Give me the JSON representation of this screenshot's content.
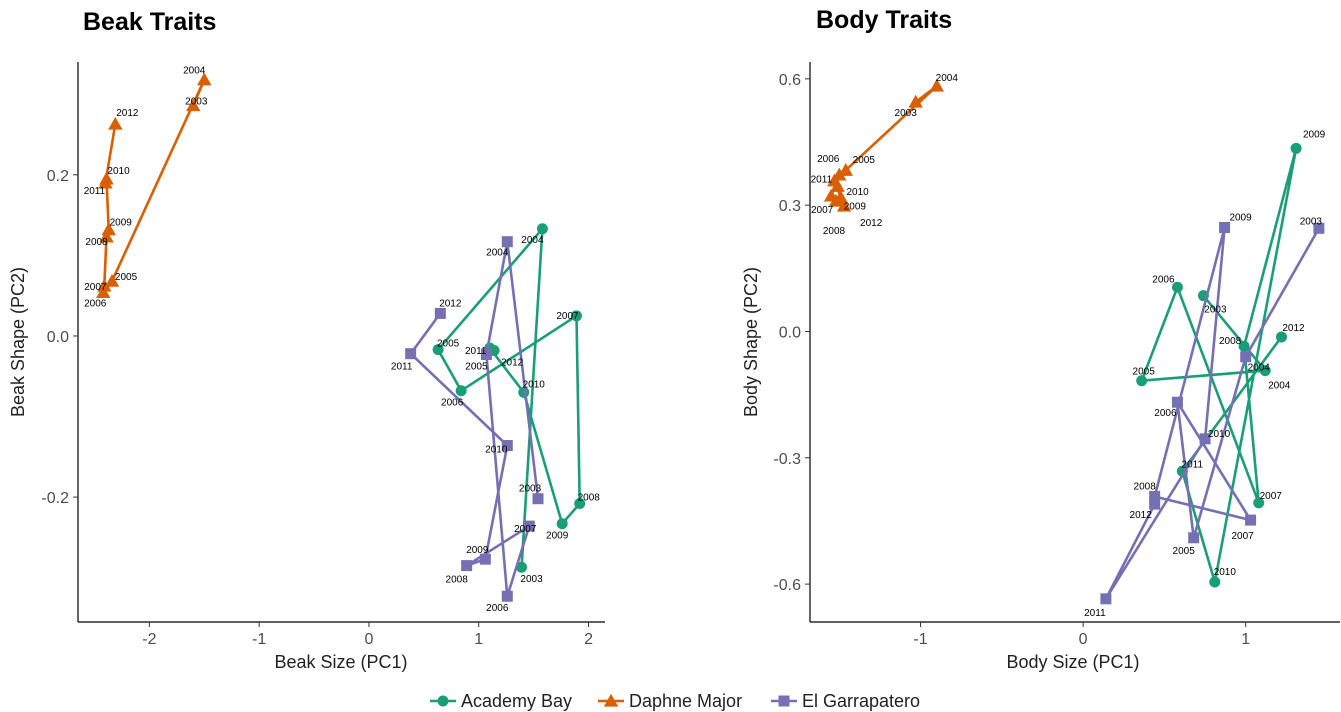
{
  "legend": [
    {
      "name": "Academy Bay",
      "color": "#1b9e77",
      "marker": "circle"
    },
    {
      "name": "Daphne Major",
      "color": "#d95f02",
      "marker": "triangle"
    },
    {
      "name": "El Garrapatero",
      "color": "#7570b3",
      "marker": "square"
    }
  ],
  "chart_data": [
    {
      "type": "line",
      "title": "Beak Traits",
      "xlabel": "Beak Size (PC1)",
      "ylabel": "Beak Shape (PC2)",
      "xlim": [
        -2.65,
        2.15
      ],
      "ylim": [
        -0.355,
        0.34
      ],
      "xticks": [
        -2,
        -1,
        0,
        1,
        2
      ],
      "xtick_labels": [
        "-2",
        "-1",
        "0",
        "1",
        "2"
      ],
      "yticks": [
        -0.2,
        0.0,
        0.2
      ],
      "ytick_labels": [
        "-0.2",
        "0.0",
        "0.2"
      ],
      "series": [
        {
          "name": "Academy Bay",
          "color": "#1b9e77",
          "marker": "circle",
          "points": [
            {
              "year": "2003",
              "x": 1.39,
              "y": -0.287
            },
            {
              "year": "2004",
              "x": 1.58,
              "y": 0.133
            },
            {
              "year": "2005",
              "x": 0.63,
              "y": -0.017
            },
            {
              "year": "2006",
              "x": 0.84,
              "y": -0.068
            },
            {
              "year": "2007",
              "x": 1.89,
              "y": 0.025
            },
            {
              "year": "2008",
              "x": 1.92,
              "y": -0.208
            },
            {
              "year": "2009",
              "x": 1.76,
              "y": -0.233
            },
            {
              "year": "2010",
              "x": 1.41,
              "y": -0.07
            },
            {
              "year": "2011",
              "x": 1.1,
              "y": -0.015
            },
            {
              "year": "2012",
              "x": 1.14,
              "y": -0.018
            }
          ]
        },
        {
          "name": "Daphne Major",
          "color": "#d95f02",
          "marker": "triangle",
          "points": [
            {
              "year": "2003",
              "x": -1.6,
              "y": 0.286
            },
            {
              "year": "2004",
              "x": -1.5,
              "y": 0.318
            },
            {
              "year": "2005",
              "x": -2.34,
              "y": 0.068
            },
            {
              "year": "2006",
              "x": -2.42,
              "y": 0.054
            },
            {
              "year": "2007",
              "x": -2.41,
              "y": 0.062
            },
            {
              "year": "2008",
              "x": -2.39,
              "y": 0.123
            },
            {
              "year": "2009",
              "x": -2.37,
              "y": 0.132
            },
            {
              "year": "2010",
              "x": -2.39,
              "y": 0.195
            },
            {
              "year": "2011",
              "x": -2.4,
              "y": 0.19
            },
            {
              "year": "2012",
              "x": -2.31,
              "y": 0.263
            }
          ]
        },
        {
          "name": "El Garrapatero",
          "color": "#7570b3",
          "marker": "square",
          "points": [
            {
              "year": "2003",
              "x": 1.54,
              "y": -0.202
            },
            {
              "year": "2004",
              "x": 1.26,
              "y": 0.117
            },
            {
              "year": "2005",
              "x": 1.07,
              "y": -0.023
            },
            {
              "year": "2006",
              "x": 1.26,
              "y": -0.323
            },
            {
              "year": "2007",
              "x": 1.46,
              "y": -0.236
            },
            {
              "year": "2008",
              "x": 0.89,
              "y": -0.285
            },
            {
              "year": "2009",
              "x": 1.06,
              "y": -0.277
            },
            {
              "year": "2010",
              "x": 1.26,
              "y": -0.136
            },
            {
              "year": "2011",
              "x": 0.38,
              "y": -0.022
            },
            {
              "year": "2012",
              "x": 0.65,
              "y": 0.028
            }
          ]
        }
      ]
    },
    {
      "type": "line",
      "title": "Body Traits",
      "xlabel": "Body Size (PC1)",
      "ylabel": "Body Shape (PC2)",
      "xlim": [
        -1.68,
        1.58
      ],
      "ylim": [
        -0.69,
        0.64
      ],
      "xticks": [
        -1,
        0,
        1
      ],
      "xtick_labels": [
        "-1",
        "0",
        "1"
      ],
      "yticks": [
        -0.6,
        -0.3,
        0.0,
        0.3,
        0.6
      ],
      "ytick_labels": [
        "-0.6",
        "-0.3",
        "0.0",
        "0.3",
        "0.6"
      ],
      "series": [
        {
          "name": "Academy Bay",
          "color": "#1b9e77",
          "marker": "circle",
          "points": [
            {
              "year": "2003",
              "x": 0.74,
              "y": 0.085
            },
            {
              "year": "2004",
              "x": 1.12,
              "y": -0.093
            },
            {
              "year": "2005",
              "x": 0.36,
              "y": -0.117
            },
            {
              "year": "2006",
              "x": 0.58,
              "y": 0.105
            },
            {
              "year": "2007",
              "x": 1.08,
              "y": -0.407
            },
            {
              "year": "2008",
              "x": 0.99,
              "y": -0.035
            },
            {
              "year": "2009",
              "x": 1.31,
              "y": 0.435
            },
            {
              "year": "2010",
              "x": 0.81,
              "y": -0.595
            },
            {
              "year": "2011",
              "x": 0.61,
              "y": -0.332
            },
            {
              "year": "2012",
              "x": 1.22,
              "y": -0.013
            }
          ]
        },
        {
          "name": "Daphne Major",
          "color": "#d95f02",
          "marker": "triangle",
          "points": [
            {
              "year": "2003",
              "x": -1.03,
              "y": 0.545
            },
            {
              "year": "2004",
              "x": -0.9,
              "y": 0.583
            },
            {
              "year": "2005",
              "x": -1.46,
              "y": 0.383
            },
            {
              "year": "2006",
              "x": -1.5,
              "y": 0.372
            },
            {
              "year": "2007",
              "x": -1.55,
              "y": 0.322
            },
            {
              "year": "2008",
              "x": -1.52,
              "y": 0.31
            },
            {
              "year": "2009",
              "x": -1.49,
              "y": 0.318
            },
            {
              "year": "2010",
              "x": -1.51,
              "y": 0.345
            },
            {
              "year": "2011",
              "x": -1.53,
              "y": 0.358
            },
            {
              "year": "2012",
              "x": -1.47,
              "y": 0.298
            }
          ]
        },
        {
          "name": "El Garrapatero",
          "color": "#7570b3",
          "marker": "square",
          "points": [
            {
              "year": "2003",
              "x": 1.45,
              "y": 0.245
            },
            {
              "year": "2004",
              "x": 1.0,
              "y": -0.06
            },
            {
              "year": "2005",
              "x": 0.68,
              "y": -0.49
            },
            {
              "year": "2006",
              "x": 0.58,
              "y": -0.168
            },
            {
              "year": "2007",
              "x": 1.03,
              "y": -0.448
            },
            {
              "year": "2008",
              "x": 0.44,
              "y": -0.392
            },
            {
              "year": "2009",
              "x": 0.87,
              "y": 0.247
            },
            {
              "year": "2010",
              "x": 0.75,
              "y": -0.255
            },
            {
              "year": "2011",
              "x": 0.14,
              "y": -0.635
            },
            {
              "year": "2012",
              "x": 0.44,
              "y": -0.41
            }
          ]
        }
      ]
    }
  ]
}
